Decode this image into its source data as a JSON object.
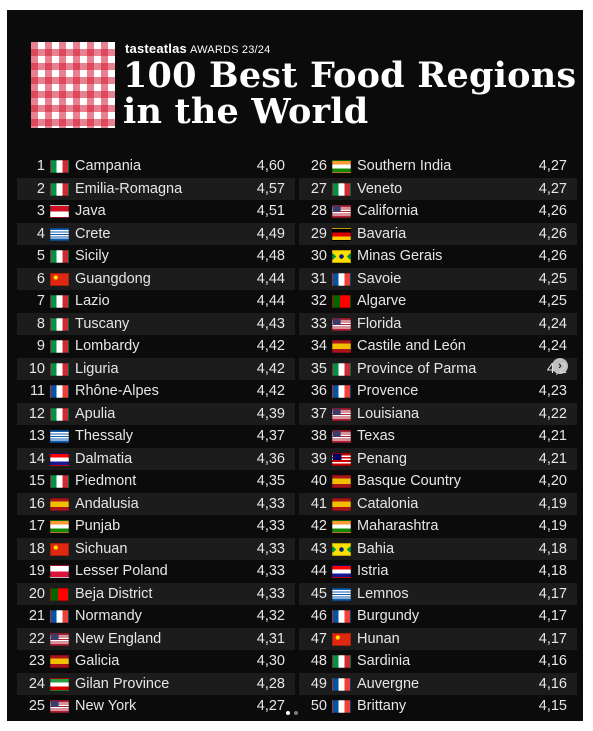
{
  "header": {
    "brand": "tasteatlas",
    "award": "AWARDS 23/24",
    "title_line1": "100 Best Food Regions",
    "title_line2": "in the World"
  },
  "flags": {
    "it": "linear-gradient(90deg,#009246 0 33.3%,#ffffff 33.3% 66.6%,#ce2b37 66.6%)",
    "fr": "linear-gradient(90deg,#0055a4 0 33.3%,#ffffff 33.3% 66.6%,#ef4135 66.6%)",
    "id": "linear-gradient(180deg,#ce1126 0 50%,#ffffff 50%)",
    "gr": "linear-gradient(180deg,#0d5eaf 0 11%,#ffffff 11% 22%,#0d5eaf 22% 33%,#ffffff 33% 44%,#0d5eaf 44% 55%,#ffffff 55% 66%,#0d5eaf 66% 77%,#ffffff 77% 88%,#0d5eaf 88%)",
    "cn": "radial-gradient(circle at 28% 32%,#ffde00 0 14%,rgba(0,0,0,0) 15%), linear-gradient(#de2910,#de2910)",
    "hr": "linear-gradient(180deg,#ff0000 0 33.3%,#ffffff 33.3% 66.6%,#171796 66.6%)",
    "es": "linear-gradient(180deg,#aa151b 0 25%,#f1bf00 25% 75%,#aa151b 75%)",
    "in": "linear-gradient(180deg,#ff9933 0 33.3%,#ffffff 33.3% 66.6%,#138808 66.6%)",
    "pl": "linear-gradient(180deg,#ffffff 0 50%,#dc143c 50%)",
    "pt": "linear-gradient(90deg,#006600 0 40%,#ff0000 40%)",
    "us": "linear-gradient(#3c3b6e,#3c3b6e) 0 0/45% 54% no-repeat, repeating-linear-gradient(180deg,#b22234 0 7.7%,#ffffff 7.7% 15.4%)",
    "ir": "linear-gradient(180deg,#239f40 0 33.3%,#ffffff 33.3% 66.6%,#da0000 66.6%)",
    "de": "linear-gradient(180deg,#000000 0 33.3%,#dd0000 33.3% 66.6%,#ffce00 66.6%)",
    "br": "radial-gradient(circle,#002776 0 22%,rgba(0,0,0,0) 23%), linear-gradient(45deg,rgba(0,0,0,0) 32%,#fedf00 32% 68%,rgba(0,0,0,0) 68%), linear-gradient(-45deg,rgba(0,0,0,0) 32%,#fedf00 32% 68%,rgba(0,0,0,0) 68%), linear-gradient(#009c3b,#009c3b)",
    "my": "linear-gradient(#010066,#010066) 0 0/50% 57% no-repeat, repeating-linear-gradient(180deg,#cc0001 0 14.2%,#ffffff 14.2% 28.4%)"
  },
  "left_column": [
    {
      "rank": "1",
      "flag": "it",
      "name": "Campania",
      "score": "4,60"
    },
    {
      "rank": "2",
      "flag": "it",
      "name": "Emilia-Romagna",
      "score": "4,57"
    },
    {
      "rank": "3",
      "flag": "id",
      "name": "Java",
      "score": "4,51"
    },
    {
      "rank": "4",
      "flag": "gr",
      "name": "Crete",
      "score": "4,49"
    },
    {
      "rank": "5",
      "flag": "it",
      "name": "Sicily",
      "score": "4,48"
    },
    {
      "rank": "6",
      "flag": "cn",
      "name": "Guangdong",
      "score": "4,44"
    },
    {
      "rank": "7",
      "flag": "it",
      "name": "Lazio",
      "score": "4,44"
    },
    {
      "rank": "8",
      "flag": "it",
      "name": "Tuscany",
      "score": "4,43"
    },
    {
      "rank": "9",
      "flag": "it",
      "name": "Lombardy",
      "score": "4,42"
    },
    {
      "rank": "10",
      "flag": "it",
      "name": "Liguria",
      "score": "4,42"
    },
    {
      "rank": "11",
      "flag": "fr",
      "name": "Rhône-Alpes",
      "score": "4,42"
    },
    {
      "rank": "12",
      "flag": "it",
      "name": "Apulia",
      "score": "4,39"
    },
    {
      "rank": "13",
      "flag": "gr",
      "name": "Thessaly",
      "score": "4,37"
    },
    {
      "rank": "14",
      "flag": "hr",
      "name": "Dalmatia",
      "score": "4,36"
    },
    {
      "rank": "15",
      "flag": "it",
      "name": "Piedmont",
      "score": "4,35"
    },
    {
      "rank": "16",
      "flag": "es",
      "name": "Andalusia",
      "score": "4,33"
    },
    {
      "rank": "17",
      "flag": "in",
      "name": "Punjab",
      "score": "4,33"
    },
    {
      "rank": "18",
      "flag": "cn",
      "name": "Sichuan",
      "score": "4,33"
    },
    {
      "rank": "19",
      "flag": "pl",
      "name": "Lesser Poland",
      "score": "4,33"
    },
    {
      "rank": "20",
      "flag": "pt",
      "name": "Beja District",
      "score": "4,33"
    },
    {
      "rank": "21",
      "flag": "fr",
      "name": "Normandy",
      "score": "4,32"
    },
    {
      "rank": "22",
      "flag": "us",
      "name": "New England",
      "score": "4,31"
    },
    {
      "rank": "23",
      "flag": "es",
      "name": "Galicia",
      "score": "4,30"
    },
    {
      "rank": "24",
      "flag": "ir",
      "name": "Gilan Province",
      "score": "4,28"
    },
    {
      "rank": "25",
      "flag": "us",
      "name": "New York",
      "score": "4,27"
    }
  ],
  "right_column": [
    {
      "rank": "26",
      "flag": "in",
      "name": "Southern India",
      "score": "4,27"
    },
    {
      "rank": "27",
      "flag": "it",
      "name": "Veneto",
      "score": "4,27"
    },
    {
      "rank": "28",
      "flag": "us",
      "name": "California",
      "score": "4,26"
    },
    {
      "rank": "29",
      "flag": "de",
      "name": "Bavaria",
      "score": "4,26"
    },
    {
      "rank": "30",
      "flag": "br",
      "name": "Minas Gerais",
      "score": "4,26"
    },
    {
      "rank": "31",
      "flag": "fr",
      "name": "Savoie",
      "score": "4,25"
    },
    {
      "rank": "32",
      "flag": "pt",
      "name": "Algarve",
      "score": "4,25"
    },
    {
      "rank": "33",
      "flag": "us",
      "name": "Florida",
      "score": "4,24"
    },
    {
      "rank": "34",
      "flag": "es",
      "name": "Castile and León",
      "score": "4,24"
    },
    {
      "rank": "35",
      "flag": "it",
      "name": "Province of Parma",
      "score": "4,2"
    },
    {
      "rank": "36",
      "flag": "fr",
      "name": "Provence",
      "score": "4,23"
    },
    {
      "rank": "37",
      "flag": "us",
      "name": "Louisiana",
      "score": "4,22"
    },
    {
      "rank": "38",
      "flag": "us",
      "name": "Texas",
      "score": "4,21"
    },
    {
      "rank": "39",
      "flag": "my",
      "name": "Penang",
      "score": "4,21"
    },
    {
      "rank": "40",
      "flag": "es",
      "name": "Basque Country",
      "score": "4,20"
    },
    {
      "rank": "41",
      "flag": "es",
      "name": "Catalonia",
      "score": "4,19"
    },
    {
      "rank": "42",
      "flag": "in",
      "name": "Maharashtra",
      "score": "4,19"
    },
    {
      "rank": "43",
      "flag": "br",
      "name": "Bahia",
      "score": "4,18"
    },
    {
      "rank": "44",
      "flag": "hr",
      "name": "Istria",
      "score": "4,18"
    },
    {
      "rank": "45",
      "flag": "gr",
      "name": "Lemnos",
      "score": "4,17"
    },
    {
      "rank": "46",
      "flag": "fr",
      "name": "Burgundy",
      "score": "4,17"
    },
    {
      "rank": "47",
      "flag": "cn",
      "name": "Hunan",
      "score": "4,17"
    },
    {
      "rank": "48",
      "flag": "it",
      "name": "Sardinia",
      "score": "4,16"
    },
    {
      "rank": "49",
      "flag": "fr",
      "name": "Auvergne",
      "score": "4,16"
    },
    {
      "rank": "50",
      "flag": "fr",
      "name": "Brittany",
      "score": "4,15"
    }
  ],
  "carousel": {
    "next_glyph": "›",
    "current_slide": 1,
    "total_slides": 2
  }
}
